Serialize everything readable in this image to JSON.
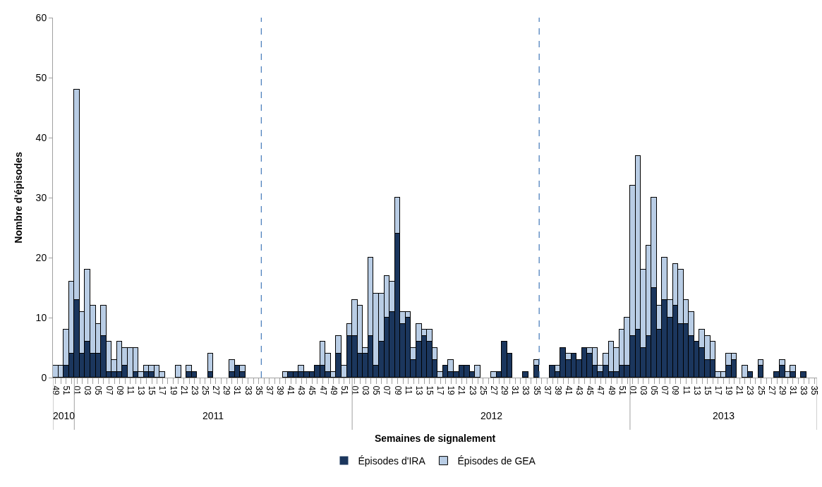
{
  "chart_data": {
    "type": "bar",
    "stacked": true,
    "xlabel": "Semaines de signalement",
    "ylabel": "Nombre d'épisodes",
    "categories": [
      "49",
      null,
      "51",
      null,
      "01",
      null,
      "03",
      null,
      "05",
      null,
      "07",
      null,
      "09",
      null,
      "11",
      null,
      "13",
      null,
      "15",
      null,
      "17",
      null,
      "19",
      null,
      "21",
      null,
      "23",
      null,
      "25",
      null,
      "27",
      null,
      "29",
      null,
      "31",
      null,
      "33",
      null,
      "35",
      null,
      "37",
      null,
      "39",
      null,
      "41",
      null,
      "43",
      null,
      "45",
      null,
      "47",
      null,
      "49",
      null,
      "51",
      null,
      "01",
      null,
      "03",
      null,
      "05",
      null,
      "07",
      null,
      "09",
      null,
      "11",
      null,
      "13",
      null,
      "15",
      null,
      "17",
      null,
      "19",
      null,
      "21",
      null,
      "23",
      null,
      "25",
      null,
      "27",
      null,
      "29",
      null,
      "31",
      null,
      "33",
      null,
      "35",
      null,
      "37",
      null,
      "39",
      null,
      "41",
      null,
      "43",
      null,
      "45",
      null,
      "47",
      null,
      "49",
      null,
      "51",
      null,
      "01",
      null,
      "03",
      null,
      "05",
      null,
      "07",
      null,
      "09",
      null,
      "11",
      null,
      "13",
      null,
      "15",
      null,
      "17",
      null,
      "19",
      null,
      "21",
      null,
      "23",
      null,
      "25",
      null,
      "27",
      null,
      "29",
      null,
      "31",
      null,
      "33",
      null,
      "35"
    ],
    "series": [
      {
        "name": "Épisodes d'IRA",
        "color": "#1b365d",
        "values": [
          0,
          0,
          2,
          4,
          13,
          4,
          6,
          4,
          4,
          7,
          1,
          1,
          1,
          2,
          0,
          1,
          0,
          1,
          1,
          0,
          0,
          0,
          0,
          0,
          0,
          1,
          1,
          0,
          0,
          1,
          0,
          0,
          0,
          1,
          2,
          1,
          0,
          0,
          0,
          0,
          0,
          0,
          0,
          0,
          1,
          1,
          1,
          1,
          1,
          2,
          2,
          1,
          0,
          4,
          0,
          7,
          7,
          4,
          4,
          7,
          2,
          6,
          10,
          11,
          24,
          9,
          10,
          3,
          6,
          7,
          6,
          3,
          0,
          2,
          1,
          1,
          2,
          2,
          1,
          0,
          0,
          0,
          0,
          1,
          6,
          4,
          0,
          0,
          1,
          0,
          2,
          0,
          0,
          2,
          1,
          5,
          3,
          4,
          3,
          5,
          4,
          2,
          1,
          2,
          1,
          1,
          2,
          2,
          7,
          8,
          5,
          7,
          15,
          8,
          13,
          10,
          12,
          9,
          9,
          7,
          6,
          5,
          3,
          3,
          0,
          0,
          2,
          3,
          0,
          0,
          1,
          0,
          2,
          0,
          0,
          1,
          2,
          0,
          1,
          0,
          1,
          0,
          0
        ]
      },
      {
        "name": "Épisodes de GEA",
        "color": "#b9cde5",
        "values": [
          2,
          2,
          6,
          12,
          35,
          7,
          12,
          8,
          5,
          5,
          5,
          2,
          5,
          3,
          5,
          4,
          1,
          1,
          1,
          2,
          1,
          0,
          0,
          2,
          0,
          1,
          0,
          0,
          0,
          3,
          0,
          0,
          0,
          2,
          0,
          1,
          0,
          0,
          0,
          0,
          0,
          0,
          0,
          1,
          0,
          0,
          1,
          0,
          0,
          0,
          4,
          3,
          1,
          3,
          2,
          2,
          6,
          8,
          1,
          13,
          12,
          8,
          7,
          5,
          6,
          2,
          1,
          2,
          3,
          1,
          2,
          2,
          1,
          0,
          2,
          0,
          0,
          0,
          0,
          2,
          0,
          0,
          1,
          0,
          0,
          0,
          0,
          0,
          0,
          0,
          1,
          0,
          0,
          0,
          1,
          0,
          1,
          0,
          0,
          0,
          1,
          3,
          1,
          2,
          5,
          4,
          6,
          8,
          25,
          29,
          13,
          15,
          15,
          4,
          7,
          3,
          7,
          9,
          4,
          4,
          0,
          3,
          4,
          3,
          1,
          1,
          2,
          1,
          0,
          2,
          0,
          0,
          1,
          0,
          0,
          0,
          1,
          1,
          1,
          0,
          0,
          0,
          0
        ]
      }
    ],
    "ylim": [
      0,
      60
    ],
    "yticks": [
      0,
      10,
      20,
      30,
      40,
      50,
      60
    ],
    "legend": "bottom",
    "annotations": [
      "2010",
      "2011",
      "2012",
      "2013"
    ]
  }
}
